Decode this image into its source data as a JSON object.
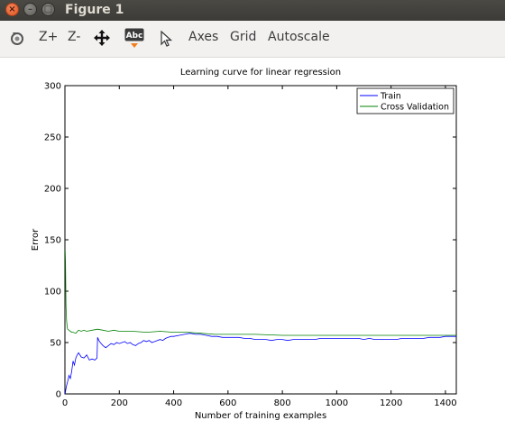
{
  "window": {
    "title": "Figure 1",
    "close_glyph": "×",
    "min_glyph": "–",
    "max_glyph": "□"
  },
  "toolbar": {
    "zoom_in": "Z+",
    "zoom_out": "Z-",
    "pan_icon": "pan-arrows-icon",
    "text_icon": "Abc",
    "axes": "Axes",
    "grid": "Grid",
    "autoscale": "Autoscale"
  },
  "chart_data": {
    "type": "line",
    "title": "Learning curve for linear regression",
    "xlabel": "Number of training examples",
    "ylabel": "Error",
    "xlim": [
      0,
      1440
    ],
    "ylim": [
      0,
      300
    ],
    "xticks": [
      0,
      200,
      400,
      600,
      800,
      1000,
      1200,
      1400
    ],
    "yticks": [
      0,
      50,
      100,
      150,
      200,
      250,
      300
    ],
    "grid": false,
    "legend_position": "top-right",
    "series": [
      {
        "name": "Train",
        "color": "#0000ff",
        "x": [
          1,
          3,
          6,
          10,
          15,
          20,
          25,
          30,
          35,
          40,
          45,
          50,
          60,
          70,
          80,
          90,
          100,
          110,
          118,
          120,
          125,
          130,
          140,
          150,
          160,
          170,
          180,
          190,
          200,
          210,
          220,
          230,
          240,
          250,
          260,
          270,
          280,
          290,
          300,
          310,
          320,
          330,
          340,
          350,
          360,
          370,
          380,
          390,
          400,
          420,
          440,
          460,
          480,
          500,
          520,
          540,
          560,
          580,
          600,
          620,
          640,
          660,
          680,
          700,
          720,
          740,
          760,
          780,
          800,
          820,
          840,
          860,
          880,
          900,
          920,
          940,
          960,
          980,
          1000,
          1020,
          1040,
          1060,
          1080,
          1100,
          1120,
          1140,
          1160,
          1180,
          1200,
          1220,
          1240,
          1260,
          1280,
          1300,
          1320,
          1340,
          1360,
          1380,
          1400,
          1420,
          1440
        ],
        "y": [
          0,
          4,
          8,
          12,
          18,
          15,
          22,
          32,
          28,
          35,
          38,
          40,
          36,
          35,
          38,
          33,
          34,
          33,
          35,
          55,
          52,
          50,
          47,
          45,
          47,
          49,
          48,
          50,
          49,
          50,
          51,
          49,
          50,
          48,
          47,
          49,
          50,
          52,
          51,
          52,
          50,
          51,
          52,
          53,
          52,
          54,
          55,
          56,
          56,
          57,
          58,
          59,
          58,
          58,
          57,
          56,
          56,
          55,
          55,
          55,
          55,
          54,
          54,
          53,
          53,
          53,
          52,
          53,
          53,
          52,
          53,
          53,
          53,
          53,
          53,
          54,
          54,
          54,
          54,
          54,
          54,
          54,
          54,
          53,
          54,
          53,
          53,
          53,
          53,
          53,
          54,
          54,
          54,
          54,
          54,
          55,
          55,
          55,
          56,
          56,
          56
        ]
      },
      {
        "name": "Cross Validation",
        "color": "#008000",
        "x": [
          1,
          2,
          4,
          6,
          8,
          10,
          15,
          20,
          25,
          30,
          40,
          50,
          60,
          70,
          80,
          100,
          120,
          140,
          160,
          180,
          200,
          250,
          300,
          350,
          400,
          450,
          500,
          550,
          600,
          700,
          800,
          900,
          1000,
          1100,
          1200,
          1300,
          1400,
          1440
        ],
        "y": [
          140,
          130,
          85,
          72,
          66,
          63,
          62,
          61,
          60,
          60,
          59,
          62,
          61,
          62,
          61,
          62,
          63,
          62,
          61,
          62,
          61,
          61,
          60,
          61,
          60,
          60,
          59,
          58,
          58,
          58,
          57,
          57,
          57,
          57,
          57,
          57,
          57,
          57
        ]
      }
    ]
  }
}
